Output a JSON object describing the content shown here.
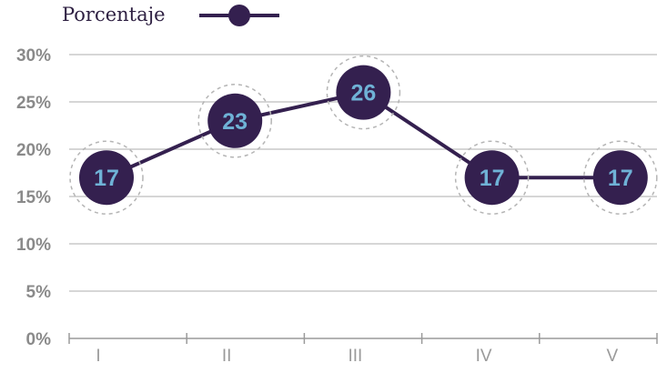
{
  "colors": {
    "series": "#34204f",
    "label": "#6fb2d6",
    "grid": "#c8c8c8",
    "halo": "#b5b5b5"
  },
  "chart_data": {
    "type": "line",
    "categories": [
      "I",
      "II",
      "III",
      "IV",
      "V"
    ],
    "series": [
      {
        "name": "Porcentaje",
        "values": [
          17,
          23,
          26,
          17,
          17
        ]
      }
    ],
    "data_labels": [
      "17",
      "23",
      "26",
      "17",
      "17"
    ],
    "yticks": [
      0,
      5,
      10,
      15,
      20,
      25,
      30
    ],
    "ytick_labels": [
      "0%",
      "5%",
      "10%",
      "15%",
      "20%",
      "25%",
      "30%"
    ],
    "ylim": [
      0,
      30
    ],
    "grid": true,
    "legend_position": "top-left",
    "title": "",
    "xlabel": "",
    "ylabel": ""
  }
}
